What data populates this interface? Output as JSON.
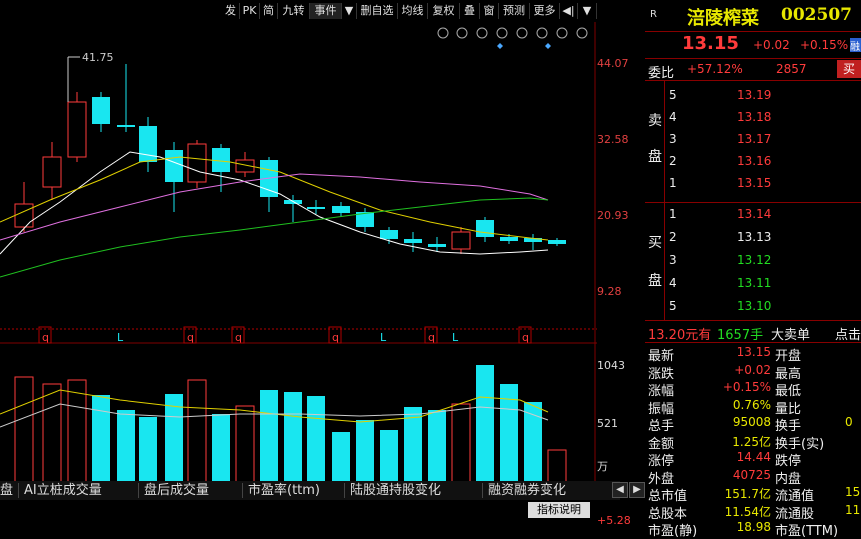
{
  "toolbar": {
    "items": [
      "发",
      "PK",
      "简",
      "九转",
      "事件",
      "▼",
      "删自选",
      "均线",
      "复权",
      "叠",
      "窗",
      "预测",
      "更多",
      "◀|",
      "▼"
    ]
  },
  "chart_icons": [
    "settings-icon",
    "pen-icon",
    "eye-icon",
    "basket-icon",
    "lock-icon",
    "lock-open-icon",
    "zoom-in-icon",
    "zoom-out-icon"
  ],
  "price_axis": [
    "44.07",
    "32.58",
    "20.93",
    "9.28"
  ],
  "peak_label": "41.75",
  "markers": [
    "q",
    "L",
    "q",
    "q",
    "q",
    "L",
    "q",
    "L",
    "q"
  ],
  "volume_axis": [
    "1043",
    "521",
    "万"
  ],
  "tabs": [
    "盘",
    "AI立桩成交量",
    "盘后成交量",
    "市盈率(ttm)",
    "陆股通持股变化",
    "融资融券变化"
  ],
  "indicator_btn": "指标说明",
  "lower_value": "+5.28",
  "stock": {
    "badge": "R",
    "name": "涪陵榨菜",
    "code": "002507",
    "price": "13.15",
    "change": "+0.02",
    "change_pct": "+0.15%",
    "market_tag": "融",
    "weibi_label": "委比",
    "weibi_value": "+57.12%",
    "weicha_value": "2857",
    "buy_btn": "买"
  },
  "asks_label": [
    "卖",
    "盘"
  ],
  "asks": [
    {
      "level": "5",
      "price": "13.19"
    },
    {
      "level": "4",
      "price": "13.18"
    },
    {
      "level": "3",
      "price": "13.17"
    },
    {
      "level": "2",
      "price": "13.16"
    },
    {
      "level": "1",
      "price": "13.15"
    }
  ],
  "bids_label": [
    "买",
    "盘"
  ],
  "bids": [
    {
      "level": "1",
      "price": "13.14",
      "color": "red"
    },
    {
      "level": "2",
      "price": "13.13",
      "color": "white"
    },
    {
      "level": "3",
      "price": "13.12",
      "color": "green"
    },
    {
      "level": "4",
      "price": "13.11",
      "color": "green"
    },
    {
      "level": "5",
      "price": "13.10",
      "color": "green"
    }
  ],
  "big_order": {
    "price": "13.20元有",
    "qty": "1657手",
    "label": "大卖单",
    "extra": "点击"
  },
  "quote_rows": [
    {
      "l1": "最新",
      "v1": "13.15",
      "c1": "red",
      "l2": "开盘",
      "v2": ""
    },
    {
      "l1": "涨跌",
      "v1": "+0.02",
      "c1": "red",
      "l2": "最高",
      "v2": ""
    },
    {
      "l1": "涨幅",
      "v1": "+0.15%",
      "c1": "red",
      "l2": "最低",
      "v2": ""
    },
    {
      "l1": "振幅",
      "v1": "0.76%",
      "c1": "yellow",
      "l2": "量比",
      "v2": ""
    },
    {
      "l1": "总手",
      "v1": "95008",
      "c1": "yellow",
      "l2": "换手",
      "v2": "0"
    },
    {
      "l1": "金额",
      "v1": "1.25亿",
      "c1": "yellow",
      "l2": "换手(实)",
      "v2": ""
    },
    {
      "l1": "涨停",
      "v1": "14.44",
      "c1": "red",
      "l2": "跌停",
      "v2": ""
    },
    {
      "l1": "外盘",
      "v1": "40725",
      "c1": "red",
      "l2": "内盘",
      "v2": ""
    },
    {
      "l1": "总市值",
      "v1": "151.7亿",
      "c1": "yellow",
      "l2": "流通值",
      "v2": "15"
    },
    {
      "l1": "总股本",
      "v1": "11.54亿",
      "c1": "yellow",
      "l2": "流通股",
      "v2": "11"
    },
    {
      "l1": "市盈(静)",
      "v1": "18.98",
      "c1": "yellow",
      "l2": "市盈(TTM)",
      "v2": ""
    }
  ],
  "colors": {
    "up": "#ff3b3b",
    "down": "#19e6f0",
    "bg": "#000000",
    "grid": "#800000"
  }
}
